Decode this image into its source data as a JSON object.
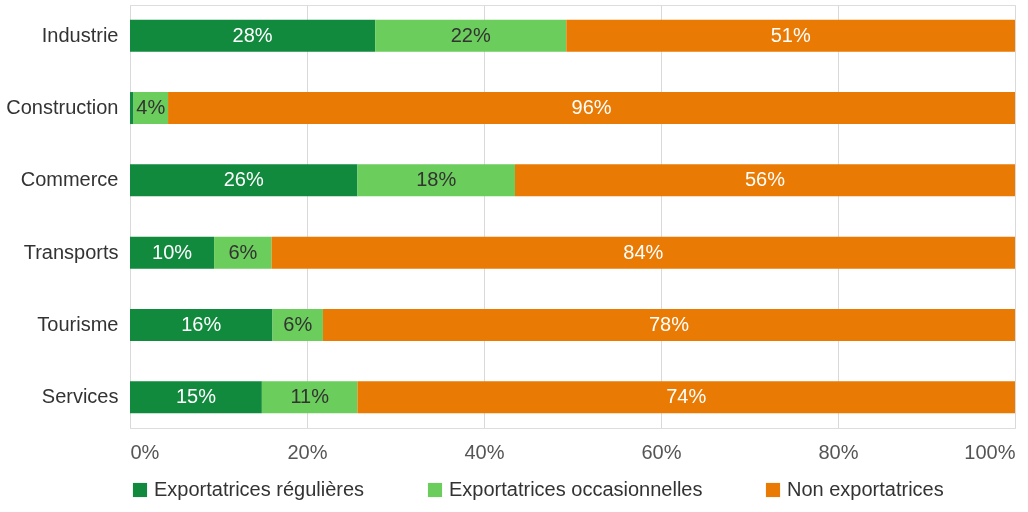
{
  "chart_data": {
    "type": "bar",
    "orientation": "horizontal",
    "stacked": true,
    "categories": [
      "Industrie",
      "Construction",
      "Commerce",
      "Transports",
      "Tourisme",
      "Services"
    ],
    "series": [
      {
        "name": "Exportatrices régulières",
        "color": "#118a3e",
        "values": [
          27.7,
          0.4,
          25.7,
          9.5,
          16.1,
          14.9
        ],
        "value_labels": [
          "28%",
          null,
          "26%",
          "10%",
          "16%",
          "15%"
        ]
      },
      {
        "name": "Exportatrices occasionnelles",
        "color": "#6bcd5b",
        "values": [
          21.6,
          3.9,
          17.8,
          6.5,
          5.7,
          10.8
        ],
        "value_labels": [
          "22%",
          "4%",
          "18%",
          "6%",
          "6%",
          "11%"
        ]
      },
      {
        "name": "Non exportatrices",
        "color": "#e97a03",
        "values": [
          50.7,
          95.7,
          56.5,
          84.0,
          78.2,
          74.3
        ],
        "value_labels": [
          "51%",
          "96%",
          "56%",
          "84%",
          "78%",
          "74%"
        ]
      }
    ],
    "xlim": [
      0,
      100
    ],
    "xticks": [
      {
        "value": 0,
        "label": "0%"
      },
      {
        "value": 20,
        "label": "20%"
      },
      {
        "value": 40,
        "label": "40%"
      },
      {
        "value": 60,
        "label": "60%"
      },
      {
        "value": 80,
        "label": "80%"
      },
      {
        "value": 100,
        "label": "100%"
      }
    ],
    "grid": "x",
    "legend": "bottom"
  }
}
